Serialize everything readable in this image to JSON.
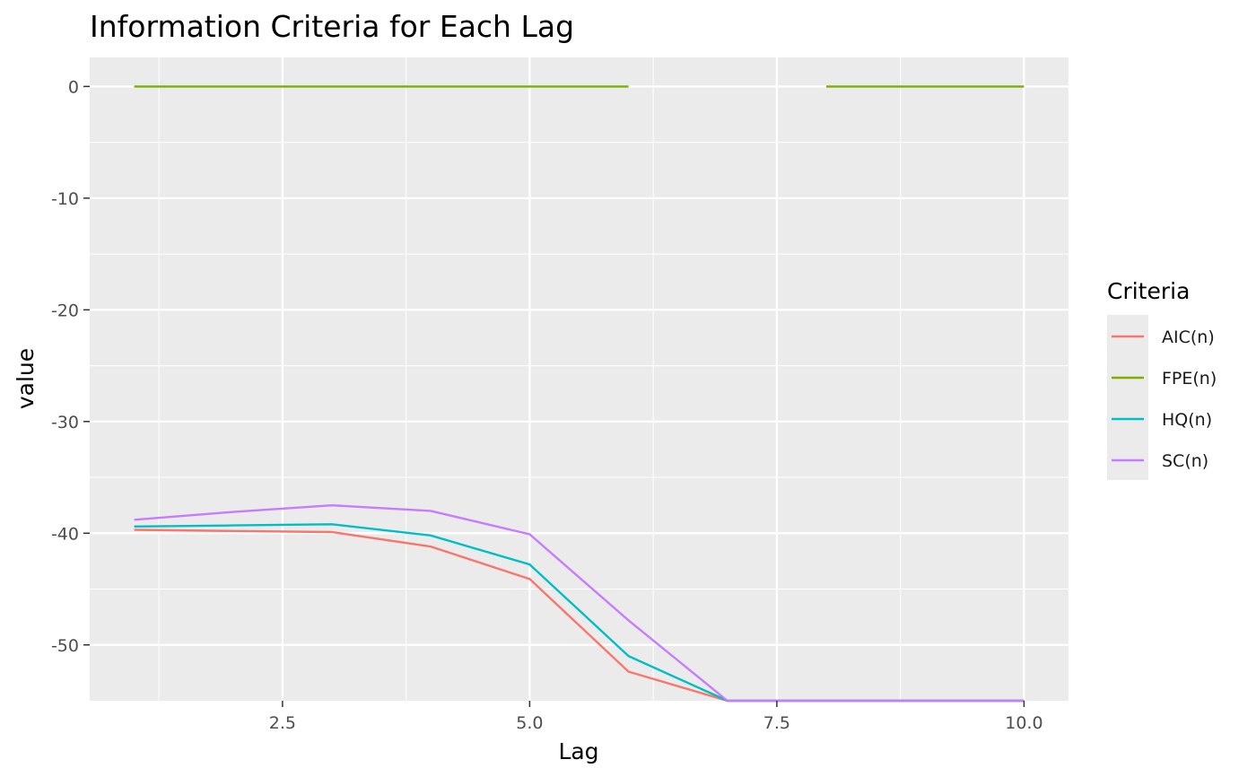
{
  "chart_data": {
    "type": "line",
    "title": "Information Criteria for Each Lag",
    "xlabel": "Lag",
    "ylabel": "value",
    "xlim": [
      0.55,
      10.45
    ],
    "ylim": [
      -55,
      2.6
    ],
    "x_ticks": [
      2.5,
      5.0,
      7.5,
      10.0
    ],
    "x_tick_labels": [
      "2.5",
      "5.0",
      "7.5",
      "10.0"
    ],
    "y_ticks": [
      0,
      -10,
      -20,
      -30,
      -40,
      -50
    ],
    "y_tick_labels": [
      "0",
      "-10",
      "-20",
      "-30",
      "-40",
      "-50"
    ],
    "grid": true,
    "legend": {
      "title": "Criteria",
      "position": "right"
    },
    "x": [
      1,
      2,
      3,
      4,
      5,
      6,
      7,
      8,
      9,
      10
    ],
    "series": [
      {
        "name": "AIC(n)",
        "color": "#F8766D",
        "values": [
          -39.7,
          -39.8,
          -39.9,
          -41.2,
          -44.1,
          -52.4,
          -55,
          -55,
          -55,
          -55
        ]
      },
      {
        "name": "FPE(n)",
        "color": "#7CAE00",
        "values": [
          0,
          0,
          0,
          0,
          0,
          0,
          null,
          0,
          0,
          0
        ]
      },
      {
        "name": "HQ(n)",
        "color": "#00BFC4",
        "values": [
          -39.4,
          -39.3,
          -39.2,
          -40.2,
          -42.8,
          -51.0,
          -55,
          -55,
          -55,
          -55
        ]
      },
      {
        "name": "SC(n)",
        "color": "#C77CFF",
        "values": [
          -38.8,
          -38.1,
          -37.5,
          -38.0,
          -40.1,
          -47.8,
          -55,
          -55,
          -55,
          -55
        ]
      }
    ]
  }
}
